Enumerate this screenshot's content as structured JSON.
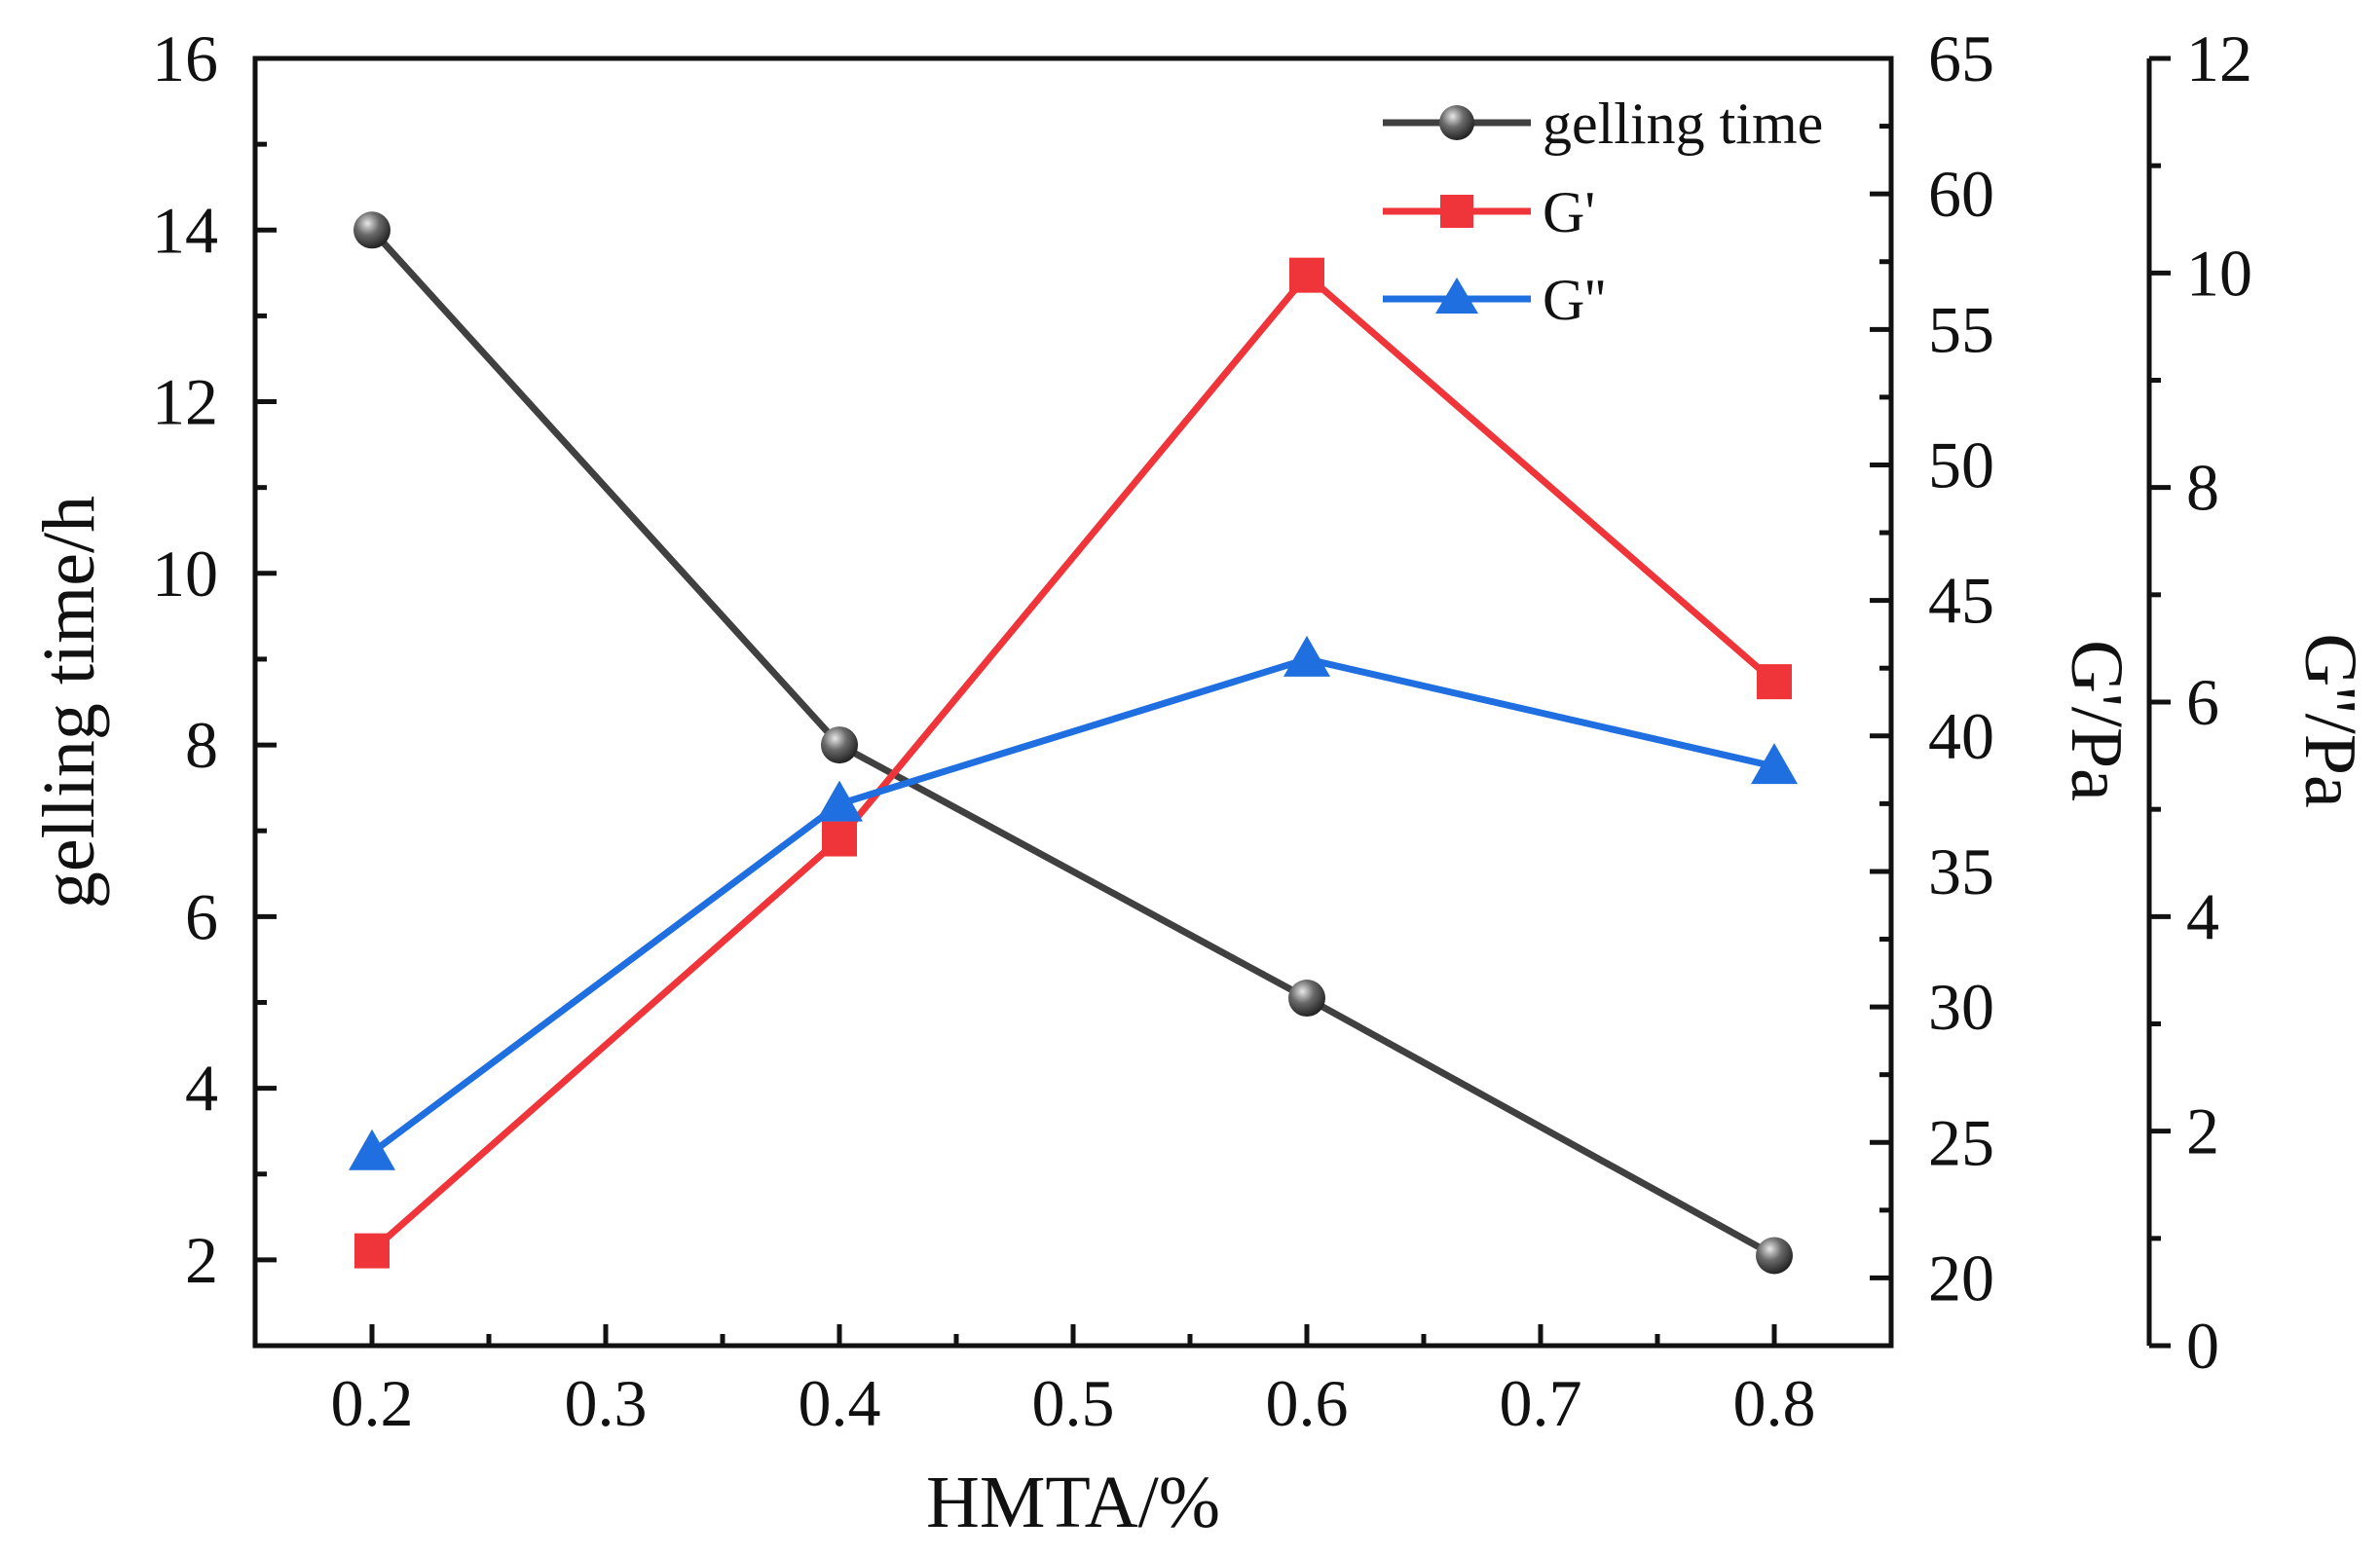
{
  "chart_data": {
    "type": "line",
    "xlabel": "HMTA/%",
    "x": [
      0.2,
      0.4,
      0.6,
      0.8
    ],
    "xlim": [
      0.15,
      0.85
    ],
    "xticks": [
      0.2,
      0.3,
      0.4,
      0.5,
      0.6,
      0.7,
      0.8
    ],
    "xtick_labels": [
      "0.2",
      "0.3",
      "0.4",
      "0.5",
      "0.6",
      "0.7",
      "0.8"
    ],
    "axes": {
      "left": {
        "label": "gelling time/h",
        "ylim": [
          1,
          16
        ],
        "ticks": [
          2,
          4,
          6,
          8,
          10,
          12,
          14,
          16
        ],
        "tick_labels": [
          "2",
          "4",
          "6",
          "8",
          "10",
          "12",
          "14",
          "16"
        ]
      },
      "right1": {
        "label": "G'/Pa",
        "ylim": [
          17.5,
          65
        ],
        "ticks": [
          20,
          25,
          30,
          35,
          40,
          45,
          50,
          55,
          60,
          65
        ],
        "tick_labels": [
          "20",
          "25",
          "30",
          "35",
          "40",
          "45",
          "50",
          "55",
          "60",
          "65"
        ]
      },
      "right2": {
        "label": "G''/Pa",
        "ylim": [
          0,
          12
        ],
        "ticks": [
          0,
          2,
          4,
          6,
          8,
          10,
          12
        ],
        "tick_labels": [
          "0",
          "2",
          "4",
          "6",
          "8",
          "10",
          "12"
        ]
      }
    },
    "series": [
      {
        "name": "gelling time",
        "axis": "left",
        "marker": "sphere",
        "color": "#404040",
        "values": [
          14.0,
          8.0,
          5.05,
          2.05
        ]
      },
      {
        "name": "G'",
        "axis": "right1",
        "marker": "square",
        "color": "#f0353a",
        "values": [
          21.0,
          36.2,
          57.0,
          42.0
        ]
      },
      {
        "name": "G''",
        "axis": "right2",
        "marker": "triangle",
        "color": "#1f6fe0",
        "values": [
          1.8,
          5.05,
          6.4,
          5.4
        ]
      }
    ],
    "legend_position": "top-right",
    "grid": false
  }
}
